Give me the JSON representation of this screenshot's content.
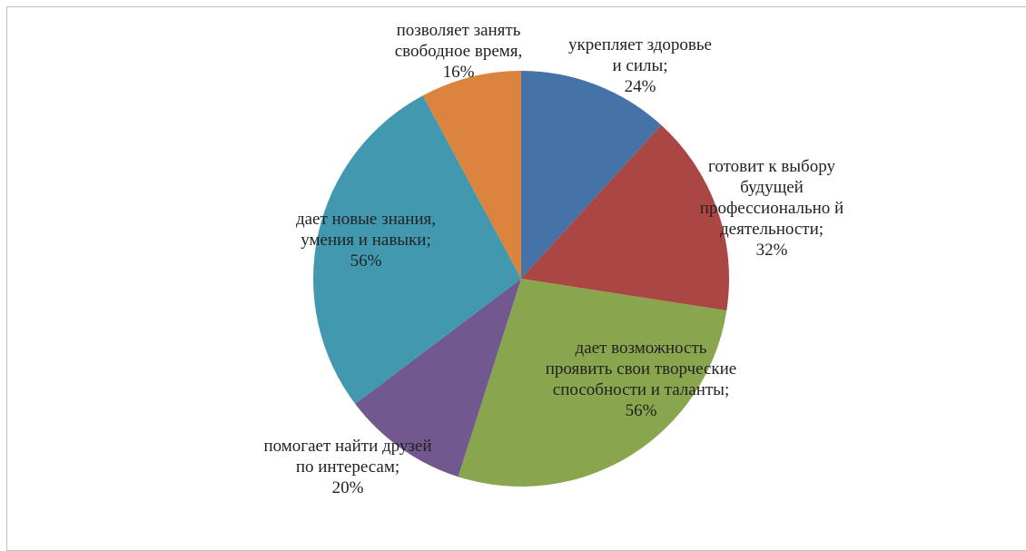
{
  "chart_data": {
    "type": "pie",
    "categories": [
      "укрепляет здоровье и силы;",
      "готовит к выбору будущей профессионально й деятельности;",
      "дает возможность проявить свои творческие способности и таланты;",
      "помогает найти друзей по интересам;",
      "дает новые знания, умения и навыки;",
      "позволяет занять свободное время,"
    ],
    "values": [
      24,
      32,
      56,
      20,
      56,
      16
    ],
    "value_labels": [
      "24%",
      "32%",
      "56%",
      "20%",
      "56%",
      "16%"
    ],
    "colors": [
      "#4572a7",
      "#aa4643",
      "#89a54e",
      "#71588f",
      "#4198af",
      "#db843d"
    ]
  }
}
